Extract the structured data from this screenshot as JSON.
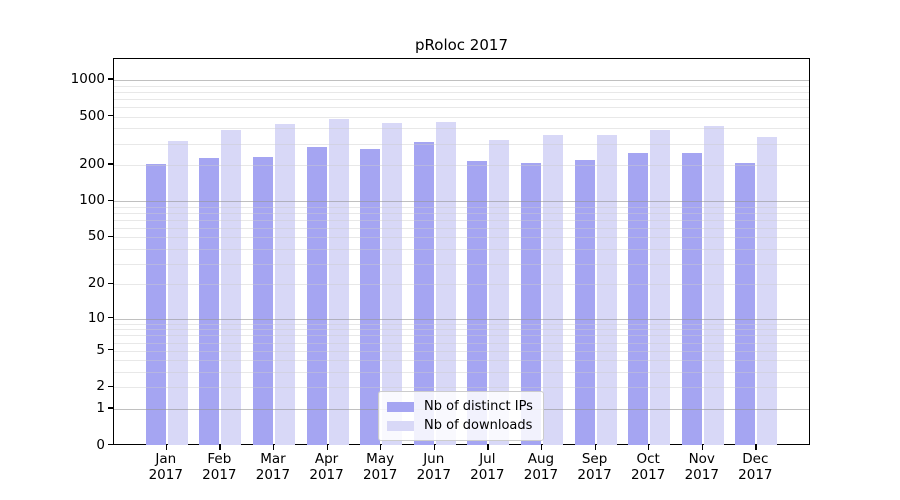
{
  "chart_data": {
    "type": "bar",
    "title": "pRoloc 2017",
    "year_label": "2017",
    "categories": [
      "Jan",
      "Feb",
      "Mar",
      "Apr",
      "May",
      "Jun",
      "Jul",
      "Aug",
      "Sep",
      "Oct",
      "Nov",
      "Dec"
    ],
    "series": [
      {
        "name": "Nb of distinct IPs",
        "color": "#a5a5f2",
        "values": [
          204,
          229,
          232,
          282,
          270,
          310,
          215,
          208,
          218,
          249,
          252,
          206
        ]
      },
      {
        "name": "Nb of downloads",
        "color": "#d8d8f7",
        "values": [
          314,
          389,
          436,
          479,
          442,
          450,
          318,
          354,
          352,
          385,
          417,
          341
        ]
      }
    ],
    "y_ticks": [
      0,
      1,
      2,
      5,
      10,
      20,
      50,
      100,
      200,
      500,
      1000
    ],
    "yscale": "log1p",
    "ylim": [
      0,
      1470
    ],
    "grid": "horizontal, minor lines at 2-9 per decade, darker lines at decades, drawn over bars",
    "legend_position": "inside bottom-center",
    "xlabel": "",
    "ylabel": ""
  }
}
